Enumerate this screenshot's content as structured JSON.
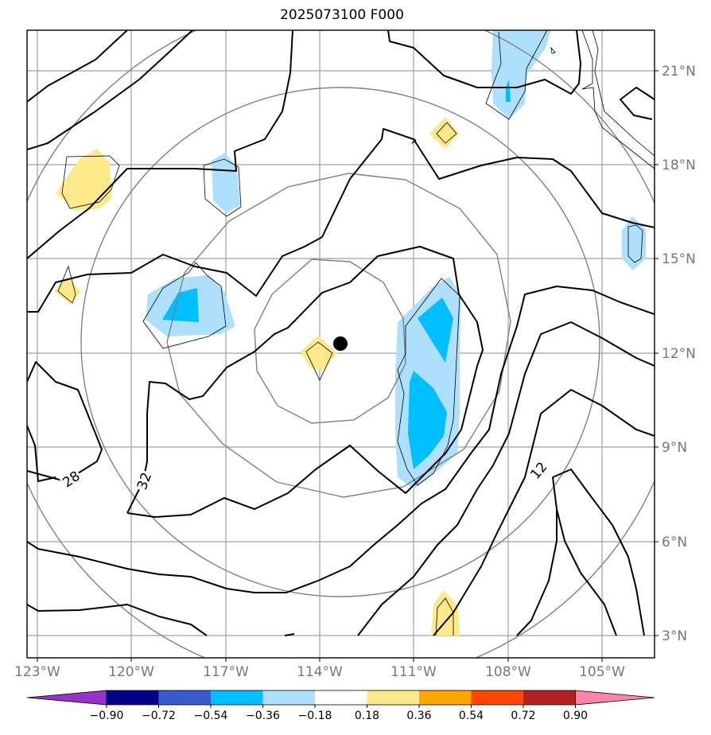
{
  "title": "2025073100 F000",
  "map": {
    "lon_range": [
      -123.2,
      -103.2
    ],
    "lat_range": [
      2.3,
      22.3
    ],
    "lon_ticks": [
      "123°W",
      "120°W",
      "117°W",
      "114°W",
      "111°W",
      "108°W",
      "105°W"
    ],
    "lat_ticks": [
      "3°N",
      "6°N",
      "9°N",
      "12°N",
      "15°N",
      "18°N",
      "21°N"
    ],
    "grid": true,
    "storm_center": {
      "lon": -113.3,
      "lat": 12.3
    },
    "range_rings": "concentric circles around storm center",
    "contour_labels": [
      "28",
      "32",
      "12"
    ]
  },
  "colorbar": {
    "ticks": [
      "−0.90",
      "−0.72",
      "−0.54",
      "−0.36",
      "−0.18",
      "0.18",
      "0.36",
      "0.54",
      "0.72",
      "0.90"
    ],
    "colors": [
      "#9932cc",
      "#00008b",
      "#3a5bd0",
      "#00bfff",
      "#aee0fb",
      "#ffffff",
      "#fde98a",
      "#ffa500",
      "#ff4500",
      "#b22222",
      "#ff85a8"
    ],
    "extend": "both"
  },
  "colors": {
    "grid": "#a0a0a0",
    "rings": "#808080",
    "contours": "#000000",
    "shade_light_blue": "#aee0fb",
    "shade_blue": "#00bfff",
    "shade_yellow": "#fde98a"
  }
}
